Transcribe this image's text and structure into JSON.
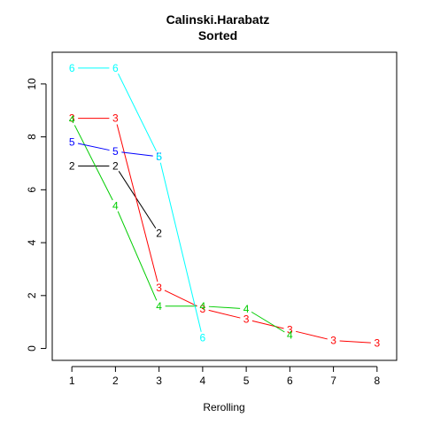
{
  "chart_data": {
    "type": "line",
    "title": "Calinski.Harabatz",
    "subtitle": "Sorted",
    "xlabel": "Rerolling",
    "ylabel": "",
    "xlim": [
      0.55,
      8.45
    ],
    "ylim": [
      -0.45,
      11.2
    ],
    "x_ticks": [
      1,
      2,
      3,
      4,
      5,
      6,
      7,
      8
    ],
    "y_ticks": [
      0,
      2,
      4,
      6,
      8,
      10
    ],
    "grid": false,
    "series": [
      {
        "label": "2",
        "color": "#000000",
        "x": [
          1,
          2,
          3
        ],
        "y": [
          6.9,
          6.9,
          4.35
        ]
      },
      {
        "label": "3",
        "color": "#ff0000",
        "x": [
          1,
          2,
          3,
          4,
          5,
          6,
          7,
          8
        ],
        "y": [
          8.7,
          8.7,
          2.3,
          1.5,
          1.1,
          0.7,
          0.3,
          0.2
        ]
      },
      {
        "label": "4",
        "color": "#00cd00",
        "x": [
          1,
          2,
          3,
          4,
          5,
          6
        ],
        "y": [
          8.65,
          5.4,
          1.6,
          1.6,
          1.5,
          0.5
        ]
      },
      {
        "label": "5",
        "color": "#0000ff",
        "x": [
          1,
          2,
          3
        ],
        "y": [
          7.8,
          7.45,
          7.25
        ]
      },
      {
        "label": "6",
        "color": "#00ffff",
        "x": [
          1,
          2,
          3,
          4
        ],
        "y": [
          10.6,
          10.6,
          7.25,
          0.4
        ]
      }
    ]
  }
}
